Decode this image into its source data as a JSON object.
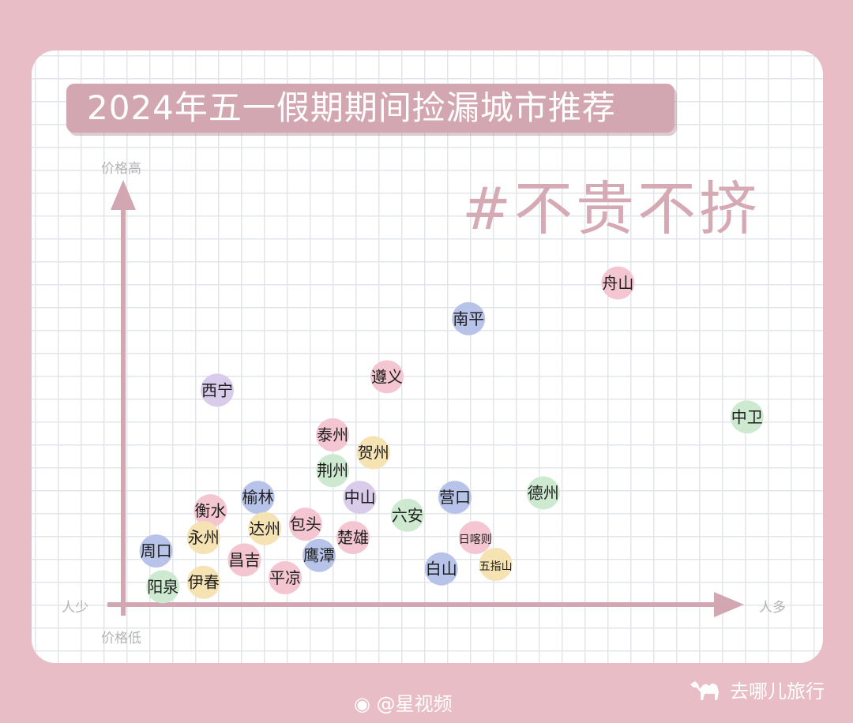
{
  "title": "2024年五一假期期间捡漏城市推荐",
  "hashtag": "#不贵不挤",
  "axis": {
    "y_high": "价格高",
    "y_low": "价格低",
    "x_low": "人少",
    "x_high": "人多"
  },
  "footer": {
    "weibo": "@星视频",
    "brand": "去哪儿旅行"
  },
  "colors": {
    "background": "#e9bdc6",
    "axis": "#d3a7b1",
    "pink": "#f3c6d2",
    "blue": "#b8c3ea",
    "green": "#cde9cf",
    "yellow": "#f6e3b4",
    "lavender": "#d9cbea"
  },
  "chart_data": {
    "type": "scatter",
    "xlabel": "人多",
    "ylabel": "价格高",
    "xlim": [
      0,
      100
    ],
    "ylim": [
      0,
      100
    ],
    "grid": true,
    "points": [
      {
        "label": "舟山",
        "x": 74,
        "y": 72,
        "color": "pink"
      },
      {
        "label": "南平",
        "x": 52,
        "y": 64,
        "color": "blue"
      },
      {
        "label": "遵义",
        "x": 40,
        "y": 51,
        "color": "pink"
      },
      {
        "label": "西宁",
        "x": 15,
        "y": 48,
        "color": "lavender"
      },
      {
        "label": "中卫",
        "x": 93,
        "y": 42,
        "color": "green"
      },
      {
        "label": "泰州",
        "x": 32,
        "y": 38,
        "color": "pink"
      },
      {
        "label": "贺州",
        "x": 38,
        "y": 34,
        "color": "yellow"
      },
      {
        "label": "荆州",
        "x": 32,
        "y": 30,
        "color": "green"
      },
      {
        "label": "德州",
        "x": 63,
        "y": 25,
        "color": "green"
      },
      {
        "label": "榆林",
        "x": 21,
        "y": 24,
        "color": "blue"
      },
      {
        "label": "中山",
        "x": 36,
        "y": 24,
        "color": "lavender"
      },
      {
        "label": "营口",
        "x": 50,
        "y": 24,
        "color": "blue"
      },
      {
        "label": "衡水",
        "x": 14,
        "y": 21,
        "color": "pink"
      },
      {
        "label": "六安",
        "x": 43,
        "y": 20,
        "color": "green"
      },
      {
        "label": "包头",
        "x": 28,
        "y": 18,
        "color": "pink"
      },
      {
        "label": "达州",
        "x": 22,
        "y": 17,
        "color": "yellow"
      },
      {
        "label": "永州",
        "x": 13,
        "y": 15,
        "color": "yellow"
      },
      {
        "label": "楚雄",
        "x": 35,
        "y": 15,
        "color": "pink"
      },
      {
        "label": "日喀则",
        "x": 53,
        "y": 15,
        "color": "pink"
      },
      {
        "label": "周口",
        "x": 6,
        "y": 12,
        "color": "blue"
      },
      {
        "label": "昌吉",
        "x": 19,
        "y": 10,
        "color": "pink"
      },
      {
        "label": "鹰潭",
        "x": 30,
        "y": 11,
        "color": "blue"
      },
      {
        "label": "白山",
        "x": 48,
        "y": 8,
        "color": "blue"
      },
      {
        "label": "五指山",
        "x": 56,
        "y": 9,
        "color": "yellow"
      },
      {
        "label": "伊春",
        "x": 13,
        "y": 5,
        "color": "yellow"
      },
      {
        "label": "平凉",
        "x": 25,
        "y": 6,
        "color": "pink"
      },
      {
        "label": "阳泉",
        "x": 7,
        "y": 4,
        "color": "green"
      }
    ]
  }
}
